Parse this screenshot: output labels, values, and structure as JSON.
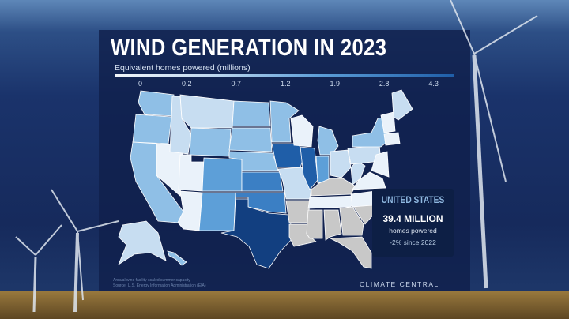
{
  "title": "WIND GENERATION IN 2023",
  "subtitle": "Equivalent homes powered (millions)",
  "legend": {
    "ticks": [
      "0",
      "0.2",
      "0.7",
      "1.2",
      "1.9",
      "2.8",
      "4.3"
    ],
    "colors": [
      "#eaf2fa",
      "#c7ddf1",
      "#8fbfe6",
      "#5d9fd8",
      "#3b7fc4",
      "#1f5ea8",
      "#123f80"
    ],
    "no_data_color": "#c8c8c8"
  },
  "summary": {
    "region": "UNITED STATES",
    "value": "39.4 MILLION",
    "unit": "homes powered",
    "change": "-2% since 2022"
  },
  "notes": [
    "Annual wind facility-scaled summer capacity",
    "Source: U.S. Energy Information Administration (EIA)"
  ],
  "brand": "CLIMATE CENTRAL",
  "states": [
    {
      "id": "WA",
      "bin": 2
    },
    {
      "id": "OR",
      "bin": 2
    },
    {
      "id": "CA",
      "bin": 2
    },
    {
      "id": "NV",
      "bin": 0
    },
    {
      "id": "ID",
      "bin": 1
    },
    {
      "id": "MT",
      "bin": 1
    },
    {
      "id": "WY",
      "bin": 2
    },
    {
      "id": "UT",
      "bin": 0
    },
    {
      "id": "AZ",
      "bin": 0
    },
    {
      "id": "CO",
      "bin": 3
    },
    {
      "id": "NM",
      "bin": 3
    },
    {
      "id": "ND",
      "bin": 2
    },
    {
      "id": "SD",
      "bin": 2
    },
    {
      "id": "NE",
      "bin": 2
    },
    {
      "id": "KS",
      "bin": 4
    },
    {
      "id": "OK",
      "bin": 4
    },
    {
      "id": "TX",
      "bin": 6
    },
    {
      "id": "MN",
      "bin": 2
    },
    {
      "id": "IA",
      "bin": 5
    },
    {
      "id": "MO",
      "bin": 1
    },
    {
      "id": "AR",
      "bin": -1
    },
    {
      "id": "LA",
      "bin": -1
    },
    {
      "id": "WI",
      "bin": 0
    },
    {
      "id": "IL",
      "bin": 5
    },
    {
      "id": "MI",
      "bin": 2
    },
    {
      "id": "IN",
      "bin": 3
    },
    {
      "id": "OH",
      "bin": 1
    },
    {
      "id": "KY",
      "bin": -1
    },
    {
      "id": "TN",
      "bin": 0
    },
    {
      "id": "MS",
      "bin": -1
    },
    {
      "id": "AL",
      "bin": -1
    },
    {
      "id": "GA",
      "bin": -1
    },
    {
      "id": "FL",
      "bin": -1
    },
    {
      "id": "SC",
      "bin": -1
    },
    {
      "id": "NC",
      "bin": 0
    },
    {
      "id": "VA",
      "bin": 0
    },
    {
      "id": "WV",
      "bin": 1
    },
    {
      "id": "PA",
      "bin": 1
    },
    {
      "id": "NY",
      "bin": 2
    },
    {
      "id": "ME",
      "bin": 1
    },
    {
      "id": "VT-NH",
      "bin": 0
    },
    {
      "id": "MA-CT-RI",
      "bin": 0
    },
    {
      "id": "NJ-MD-DE",
      "bin": 0
    },
    {
      "id": "AK",
      "bin": 1
    },
    {
      "id": "HI",
      "bin": 2
    }
  ]
}
